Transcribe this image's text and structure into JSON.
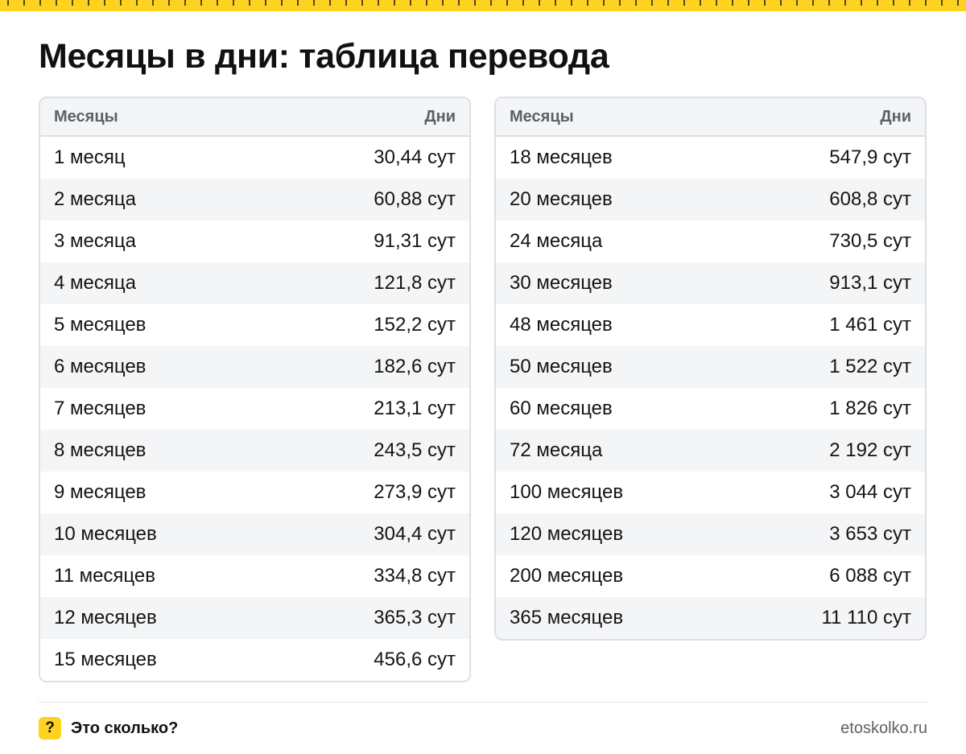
{
  "colors": {
    "accent": "#ffd21f",
    "border": "#dddfe3",
    "header_bg": "#f4f5f7",
    "muted_text": "#5d6167"
  },
  "title": "Месяцы в дни: таблица перевода",
  "tables": [
    {
      "header": {
        "col1": "Месяцы",
        "col2": "Дни"
      },
      "rows": [
        {
          "months": "1 месяц",
          "days": "30,44 сут"
        },
        {
          "months": "2 месяца",
          "days": "60,88 сут"
        },
        {
          "months": "3 месяца",
          "days": "91,31 сут"
        },
        {
          "months": "4 месяца",
          "days": "121,8 сут"
        },
        {
          "months": "5 месяцев",
          "days": "152,2 сут"
        },
        {
          "months": "6 месяцев",
          "days": "182,6 сут"
        },
        {
          "months": "7 месяцев",
          "days": "213,1 сут"
        },
        {
          "months": "8 месяцев",
          "days": "243,5 сут"
        },
        {
          "months": "9 месяцев",
          "days": "273,9 сут"
        },
        {
          "months": "10 месяцев",
          "days": "304,4 сут"
        },
        {
          "months": "11 месяцев",
          "days": "334,8 сут"
        },
        {
          "months": "12 месяцев",
          "days": "365,3 сут"
        },
        {
          "months": "15 месяцев",
          "days": "456,6 сут"
        }
      ]
    },
    {
      "header": {
        "col1": "Месяцы",
        "col2": "Дни"
      },
      "rows": [
        {
          "months": "18 месяцев",
          "days": "547,9 сут"
        },
        {
          "months": "20 месяцев",
          "days": "608,8 сут"
        },
        {
          "months": "24 месяца",
          "days": "730,5 сут"
        },
        {
          "months": "30 месяцев",
          "days": "913,1 сут"
        },
        {
          "months": "48 месяцев",
          "days": "1 461 сут"
        },
        {
          "months": "50 месяцев",
          "days": "1 522 сут"
        },
        {
          "months": "60 месяцев",
          "days": "1 826 сут"
        },
        {
          "months": "72 месяца",
          "days": "2 192 сут"
        },
        {
          "months": "100 месяцев",
          "days": "3 044 сут"
        },
        {
          "months": "120 месяцев",
          "days": "3 653 сут"
        },
        {
          "months": "200 месяцев",
          "days": "6 088 сут"
        },
        {
          "months": "365 месяцев",
          "days": "11 110 сут"
        }
      ]
    }
  ],
  "footer": {
    "logo_glyph": "?",
    "brand": "Это сколько?",
    "site": "etoskolko.ru"
  }
}
